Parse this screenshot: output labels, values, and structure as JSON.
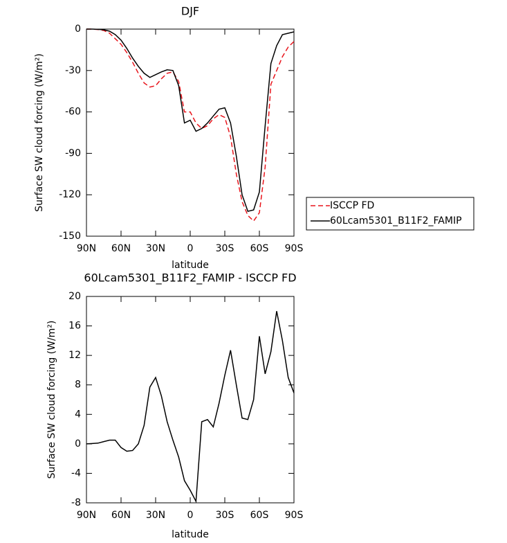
{
  "chart_data": [
    {
      "type": "line",
      "title": "DJF",
      "xlabel": "latitude",
      "ylabel": "Surface SW cloud forcing (W/m²)",
      "x": [
        90,
        85,
        80,
        75,
        70,
        65,
        60,
        55,
        50,
        45,
        40,
        35,
        30,
        25,
        20,
        15,
        10,
        5,
        0,
        -5,
        -10,
        -15,
        -20,
        -25,
        -30,
        -35,
        -40,
        -45,
        -50,
        -55,
        -60,
        -65,
        -70,
        -75,
        -80,
        -85,
        -90
      ],
      "series": [
        {
          "name": "ISCCP FD",
          "color": "#e8141b",
          "style": "dashed",
          "values": [
            0,
            0,
            -0.3,
            -1,
            -3,
            -7,
            -11,
            -17,
            -24,
            -32,
            -39,
            -42,
            -41,
            -36,
            -32,
            -31,
            -38,
            -60,
            -60,
            -68,
            -72,
            -70,
            -65,
            -62,
            -64,
            -78,
            -105,
            -125,
            -135,
            -139,
            -133,
            -100,
            -40,
            -30,
            -20,
            -13,
            -9
          ]
        },
        {
          "name": "60Lcam5301_B11F2_FAMIP",
          "color": "#000000",
          "style": "solid",
          "values": [
            0,
            0,
            -0.2,
            -0.5,
            -1.5,
            -4,
            -8,
            -14,
            -21,
            -27,
            -32,
            -35,
            -33,
            -31,
            -29.5,
            -30,
            -41,
            -68,
            -66,
            -74,
            -72,
            -68,
            -63,
            -58,
            -57,
            -68,
            -92,
            -120,
            -132,
            -131,
            -118,
            -70,
            -25,
            -12,
            -4,
            -3,
            -2
          ]
        }
      ],
      "xlim": [
        90,
        -90
      ],
      "xticks": [
        {
          "value": 90,
          "label": "90N"
        },
        {
          "value": 60,
          "label": "60N"
        },
        {
          "value": 30,
          "label": "30N"
        },
        0,
        {
          "value": -30,
          "label": "30S"
        },
        {
          "value": -60,
          "label": "60S"
        },
        {
          "value": -90,
          "label": "90S"
        }
      ],
      "ylim": [
        -150,
        0
      ],
      "yticks": [
        -150,
        -120,
        -90,
        -60,
        -30,
        0
      ],
      "legend": "right"
    },
    {
      "type": "line",
      "title": "60Lcam5301_B11F2_FAMIP - ISCCP FD",
      "xlabel": "latitude",
      "ylabel": "Surface SW cloud forcing (W/m²)",
      "x": [
        90,
        85,
        80,
        75,
        70,
        65,
        60,
        55,
        50,
        45,
        40,
        35,
        30,
        25,
        20,
        15,
        10,
        5,
        0,
        -5,
        -10,
        -15,
        -20,
        -25,
        -30,
        -35,
        -40,
        -45,
        -50,
        -55,
        -60,
        -65,
        -70,
        -75,
        -80,
        -85,
        -90
      ],
      "values": [
        0,
        0.05,
        0.1,
        0.3,
        0.5,
        0.5,
        -0.5,
        -1,
        -0.9,
        0,
        2.5,
        7.7,
        9,
        6.5,
        3,
        0.5,
        -1.8,
        -5,
        -6.3,
        -7.8,
        3,
        3.3,
        2.3,
        5.5,
        9.3,
        12.7,
        8,
        3.5,
        3.3,
        6,
        14.6,
        9.5,
        12.5,
        18,
        14,
        9,
        6.9
      ],
      "color": "#000000",
      "xlim": [
        90,
        -90
      ],
      "xticks": [
        {
          "value": 90,
          "label": "90N"
        },
        {
          "value": 60,
          "label": "60N"
        },
        {
          "value": 30,
          "label": "30N"
        },
        0,
        {
          "value": -30,
          "label": "30S"
        },
        {
          "value": -60,
          "label": "60S"
        },
        {
          "value": -90,
          "label": "90S"
        }
      ],
      "ylim": [
        -8,
        20
      ],
      "yticks": [
        -8,
        -4,
        0,
        4,
        8,
        12,
        16,
        20
      ]
    }
  ]
}
